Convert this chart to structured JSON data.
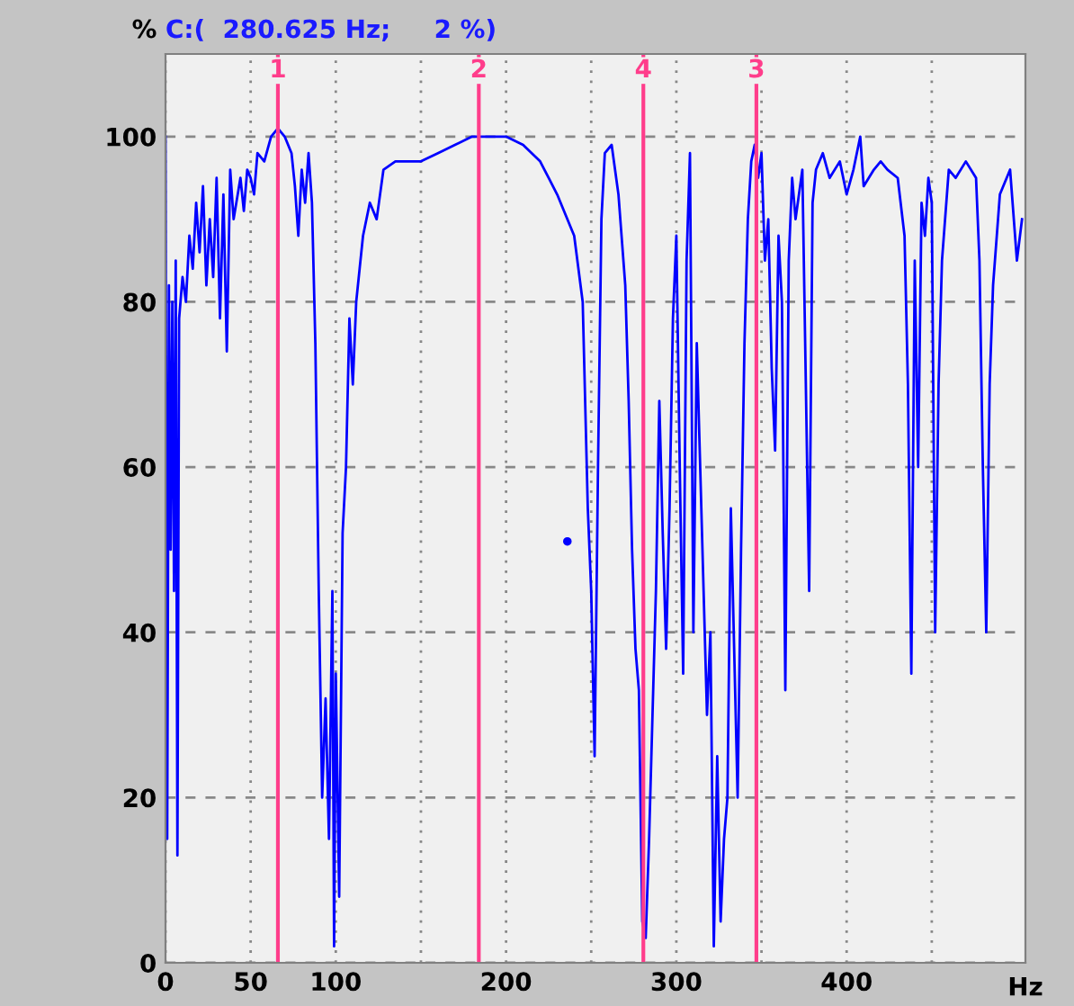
{
  "chart_data": {
    "type": "line",
    "title": "C:(  280.625 Hz;     2 %)",
    "ylabel": "%",
    "xlabel": "Hz",
    "xlim": [
      0,
      505
    ],
    "ylim": [
      0,
      110
    ],
    "xticks": [
      0,
      50,
      100,
      {
        "value": 150,
        "label": null
      },
      200,
      {
        "value": 250,
        "label": null
      },
      300,
      {
        "value": 350,
        "label": null
      },
      400,
      {
        "value": 450,
        "label": null
      }
    ],
    "yticks": [
      0,
      20,
      40,
      60,
      80,
      100
    ],
    "grid": true,
    "legend": false,
    "series": [
      {
        "color": "#0000ff",
        "x": [
          0,
          1,
          2,
          3,
          4,
          5,
          6,
          7,
          8,
          10,
          12,
          14,
          16,
          18,
          20,
          22,
          24,
          26,
          28,
          30,
          32,
          34,
          36,
          38,
          40,
          44,
          46,
          48,
          50,
          52,
          54,
          58,
          62,
          66,
          70,
          74,
          76,
          78,
          80,
          82,
          84,
          86,
          88,
          90,
          92,
          94,
          96,
          98,
          99,
          100,
          102,
          104,
          106,
          108,
          110,
          112,
          114,
          116,
          120,
          124,
          128,
          135,
          150,
          160,
          170,
          180,
          190,
          200,
          210,
          220,
          225,
          230,
          240,
          245,
          248,
          250,
          252,
          254,
          256,
          258,
          262,
          266,
          270,
          272,
          274,
          276,
          278,
          280,
          282,
          284,
          286,
          288,
          290,
          292,
          294,
          296,
          298,
          300,
          302,
          304,
          306,
          308,
          310,
          312,
          314,
          316,
          318,
          320,
          322,
          324,
          326,
          328,
          330,
          332,
          336,
          338,
          340,
          342,
          344,
          346,
          348,
          350,
          352,
          354,
          356,
          358,
          360,
          362,
          364,
          366,
          368,
          370,
          374,
          378,
          380,
          382,
          386,
          390,
          396,
          400,
          404,
          408,
          410,
          416,
          420,
          424,
          430,
          434,
          436,
          438,
          440,
          442,
          444,
          446,
          448,
          450,
          452,
          454,
          456,
          460,
          464,
          470,
          476,
          478,
          480,
          482,
          484,
          486,
          490,
          496,
          500,
          503
        ],
        "values": [
          100,
          15,
          82,
          50,
          80,
          45,
          85,
          13,
          78,
          83,
          80,
          88,
          84,
          92,
          86,
          94,
          82,
          90,
          83,
          95,
          78,
          93,
          74,
          96,
          90,
          95,
          91,
          96,
          95,
          93,
          98,
          97,
          100,
          101,
          100,
          98,
          94,
          88,
          96,
          92,
          98,
          92,
          75,
          45,
          20,
          32,
          15,
          45,
          2,
          35,
          8,
          52,
          60,
          78,
          70,
          80,
          84,
          88,
          92,
          90,
          96,
          97,
          97,
          98,
          99,
          100,
          100,
          100,
          99,
          97,
          95,
          93,
          88,
          80,
          55,
          45,
          25,
          60,
          90,
          98,
          99,
          93,
          82,
          68,
          50,
          38,
          33,
          5,
          3,
          15,
          30,
          45,
          68,
          52,
          38,
          55,
          78,
          88,
          60,
          35,
          85,
          98,
          40,
          75,
          60,
          45,
          30,
          40,
          2,
          25,
          5,
          15,
          20,
          55,
          20,
          50,
          75,
          90,
          97,
          99,
          95,
          98,
          85,
          90,
          72,
          62,
          88,
          80,
          33,
          85,
          95,
          90,
          96,
          45,
          92,
          96,
          98,
          95,
          97,
          93,
          96,
          100,
          94,
          96,
          97,
          96,
          95,
          88,
          70,
          35,
          85,
          60,
          92,
          88,
          95,
          92,
          40,
          70,
          85,
          96,
          95,
          97,
          95,
          85,
          60,
          40,
          70,
          82,
          93,
          96,
          85,
          90
        ]
      },
      {
        "type": "scatter",
        "color": "#0000ff",
        "x": [
          236
        ],
        "values": [
          51
        ]
      }
    ],
    "ref_lines": [
      {
        "axis": "x",
        "value": 66,
        "color": "#ff3d8b"
      },
      {
        "axis": "x",
        "value": 184,
        "color": "#ff3d8b"
      },
      {
        "axis": "x",
        "value": 280.625,
        "color": "#ff3d8b"
      },
      {
        "axis": "x",
        "value": 347,
        "color": "#ff3d8b"
      }
    ],
    "annotations": [
      {
        "text": "1",
        "x": 66,
        "y": 108
      },
      {
        "text": "2",
        "x": 184,
        "y": 108
      },
      {
        "text": "4",
        "x": 280.625,
        "y": 108
      },
      {
        "text": "3",
        "x": 347,
        "y": 108
      }
    ]
  }
}
